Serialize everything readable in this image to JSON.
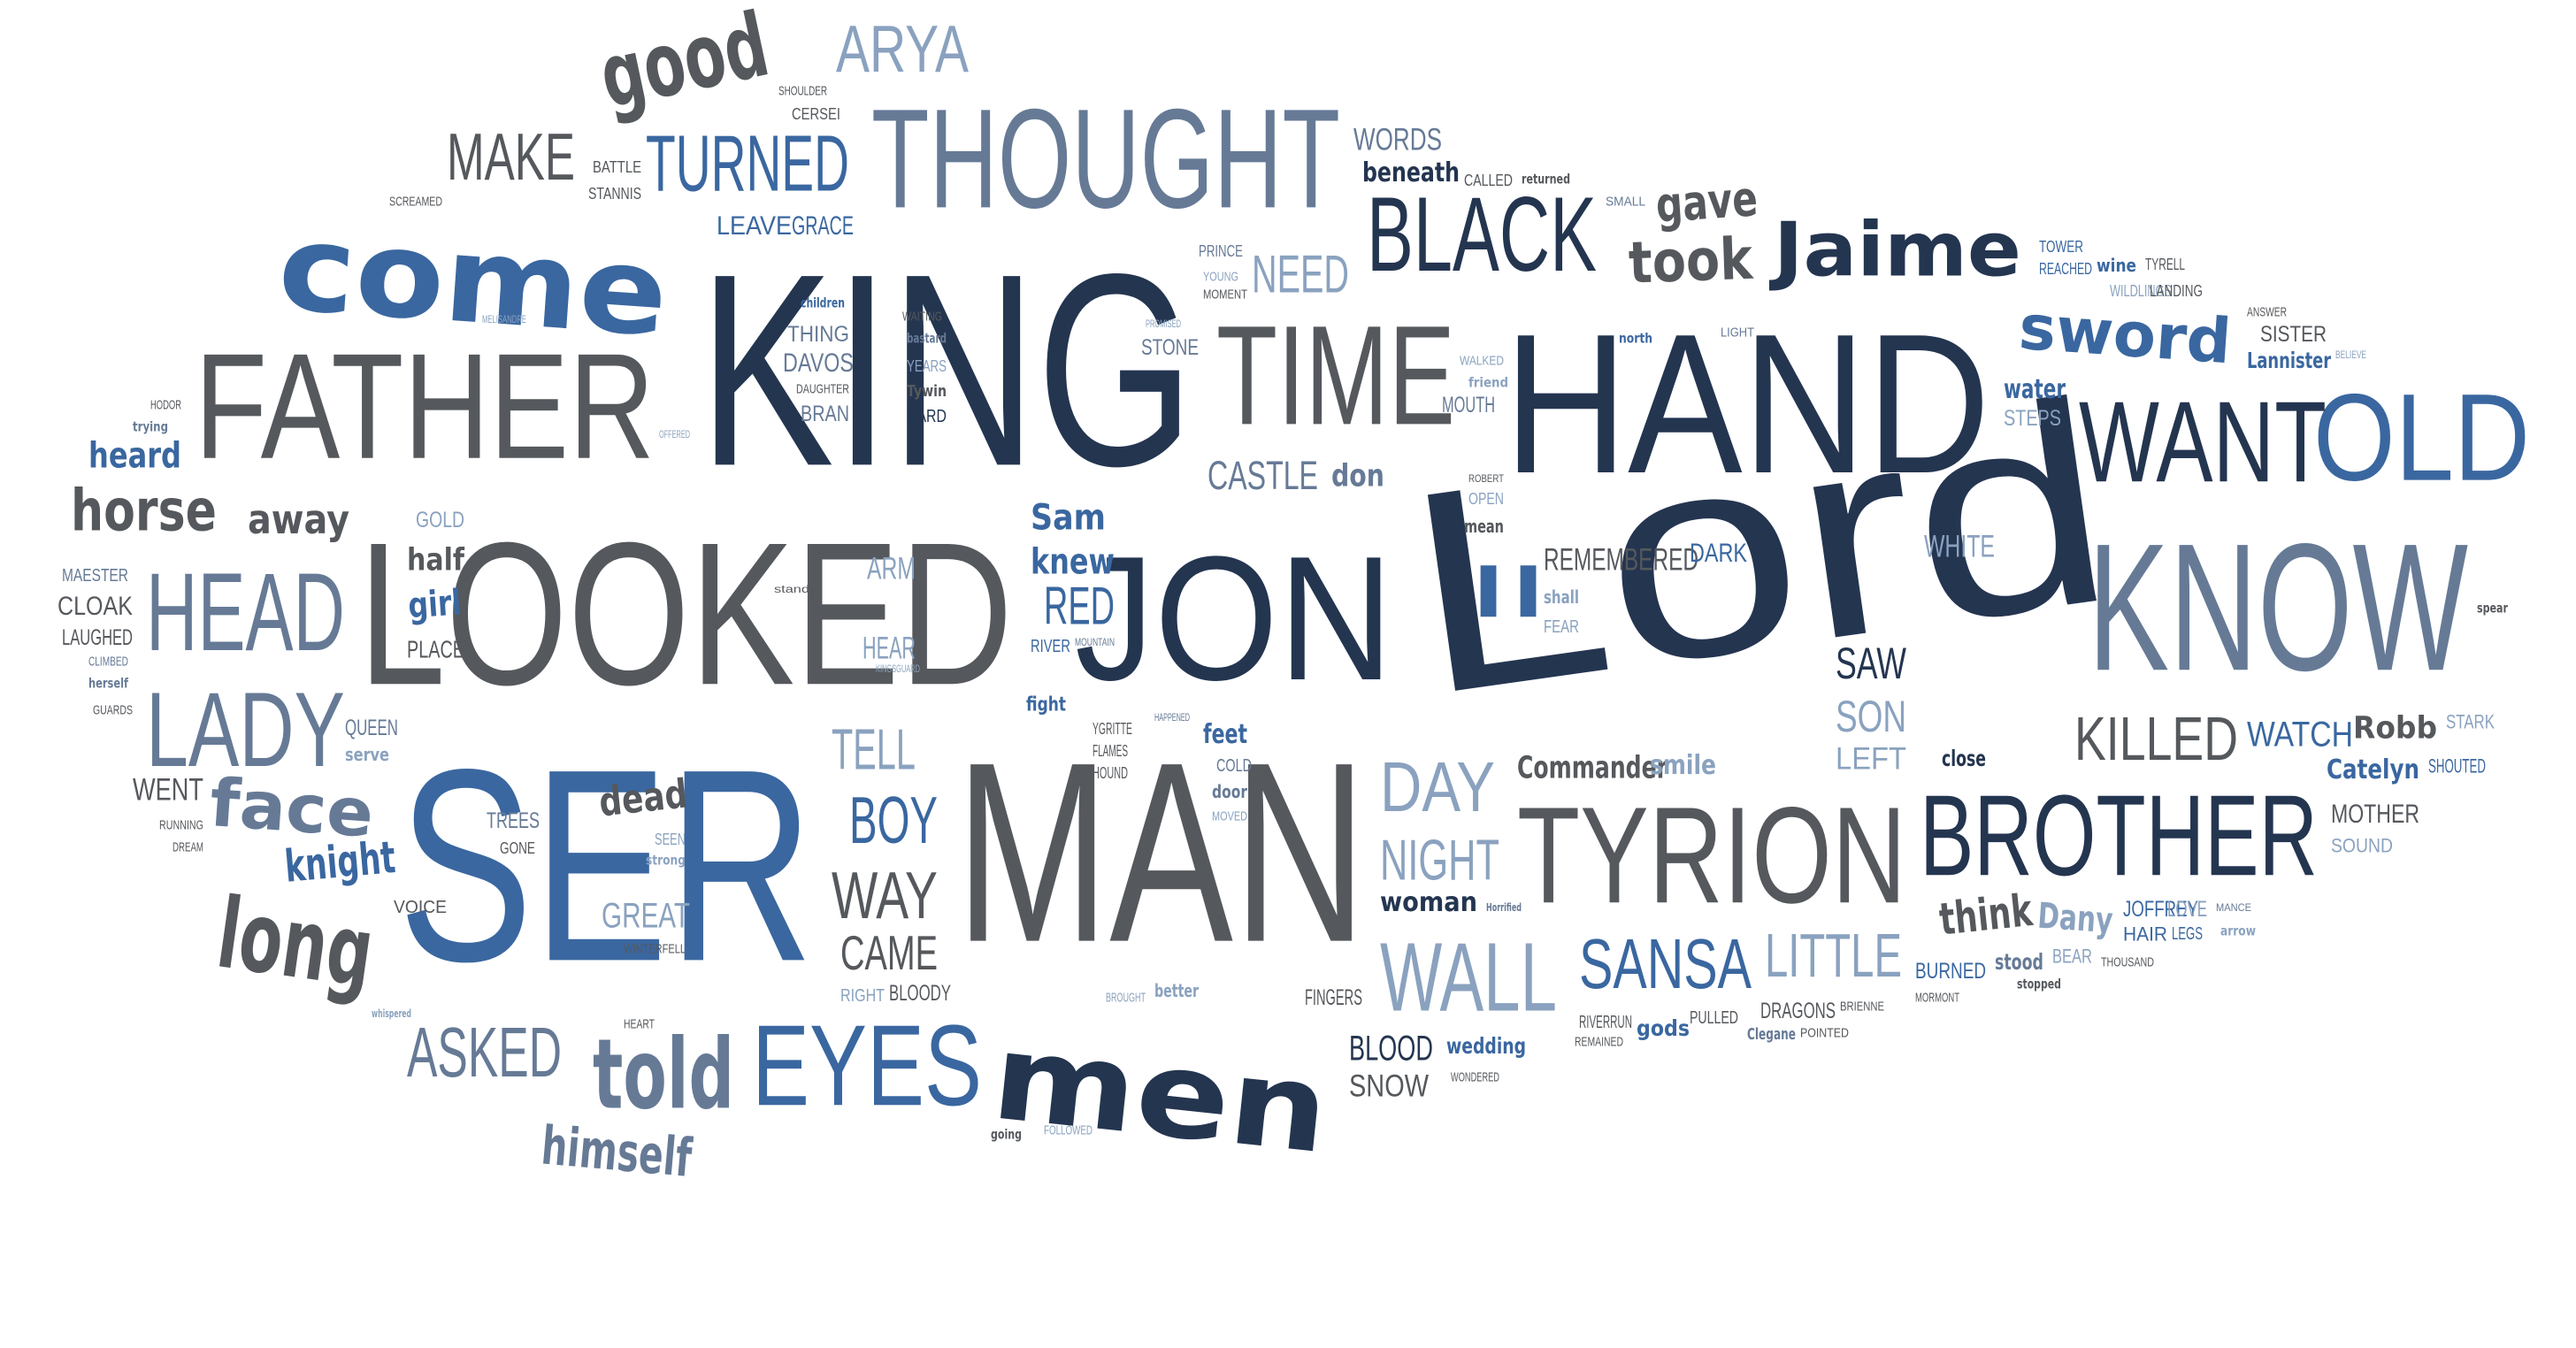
{
  "colors": {
    "navy": "#243550",
    "blue": "#3a67a0",
    "steel": "#667a96",
    "gray": "#55585c",
    "light": "#8aa2bf"
  },
  "words": [
    "Lord",
    "KING",
    "HAND",
    "LOOKED",
    "SER",
    "MAN",
    "JON",
    "men",
    "KNOW",
    "THOUGHT",
    "FATHER",
    "come",
    "TIME",
    "TYRION",
    "BROTHER",
    "OLD",
    "WANT",
    "Jaime",
    "BLACK",
    "HEAD",
    "LADY",
    "EYES",
    "told",
    "SANSA",
    "WALL",
    "KILLED",
    "LITTLE",
    "TURNED",
    "ARYA",
    "good",
    "MAKE",
    "face",
    "long",
    "horse",
    "knight",
    "ASKED",
    "himself",
    "DAY",
    "NIGHT",
    "sword",
    "took",
    "gave",
    "NEED",
    "BOY",
    "WAY",
    "CAME",
    "TELL",
    "RED",
    "Sam",
    "knew",
    "ARM",
    "HEAR",
    "dead",
    "GREAT",
    "WORDS",
    "beneath",
    "CASTLE",
    "don",
    "STONE",
    "SAW",
    "SON",
    "LEFT",
    "Commander",
    "smile",
    "woman",
    "BLOOD",
    "SNOW",
    "wedding",
    "think",
    "Dany",
    "JOFFREY",
    "HAIR",
    "LEGS",
    "Robb",
    "WATCH",
    "STARK",
    "Catelyn",
    "SHOUTED",
    "MOTHER",
    "SOUND",
    "water",
    "STEPS",
    "TOWER",
    "REACHED",
    "wine",
    "TYRELL",
    "WILDLINGS",
    "LANDING",
    "SISTER",
    "Lannister",
    "ANSWER",
    "BELIEVE",
    "north",
    "LIGHT",
    "WALKED",
    "friend",
    "MOUTH",
    "PROMISED",
    "PRINCE",
    "YOUNG",
    "MOMENT",
    "THING",
    "DAVOS",
    "DAUGHTER",
    "BRAN",
    "WAITING",
    "bastard",
    "YEARS",
    "Tywin",
    "HARD",
    "children",
    "MELISANDRE",
    "heard",
    "trying",
    "HODOR",
    "OFFERED",
    "away",
    "GOLD",
    "half",
    "girl",
    "PLACE",
    "MAESTER",
    "CLOAK",
    "LAUGHED",
    "CLIMBED",
    "herself",
    "GUARDS",
    "QUEEN",
    "serve",
    "WENT",
    "RUNNING",
    "DREAM",
    "TREES",
    "GONE",
    "SEEN",
    "strong",
    "VOICE",
    "WINTERFELL",
    "RIGHT",
    "BLOODY",
    "HEART",
    "whispered",
    "BROUGHT",
    "better",
    "FINGERS",
    "going",
    "FOLLOWED",
    "fight",
    "YGRITTE",
    "FLAMES",
    "HOUND",
    "HAPPENED",
    "feet",
    "COLD",
    "door",
    "MOVED",
    "RIVER",
    "MOUNTAIN",
    "KINGSGUARD",
    "stand",
    "REMEMBERED",
    "DARK",
    "shall",
    "FEAR",
    "WHITE",
    "ROBERT",
    "OPEN",
    "mean",
    "ll",
    "close",
    "BEAR",
    "stood",
    "stopped",
    "THOUSAND",
    "LOVE",
    "MANCE",
    "arrow",
    "BURNED",
    "MORMONT",
    "DRAGONS",
    "BRIENNE",
    "Clegane",
    "POINTED",
    "PULLED",
    "gods",
    "RIVERRUN",
    "REMAINED",
    "WONDERED",
    "Horrified",
    "SCREAMED",
    "BATTLE",
    "STANNIS",
    "SHOULDER",
    "CERSEI",
    "LEAVE",
    "GRACE",
    "CALLED",
    "returned",
    "SMALL",
    "spear"
  ]
}
